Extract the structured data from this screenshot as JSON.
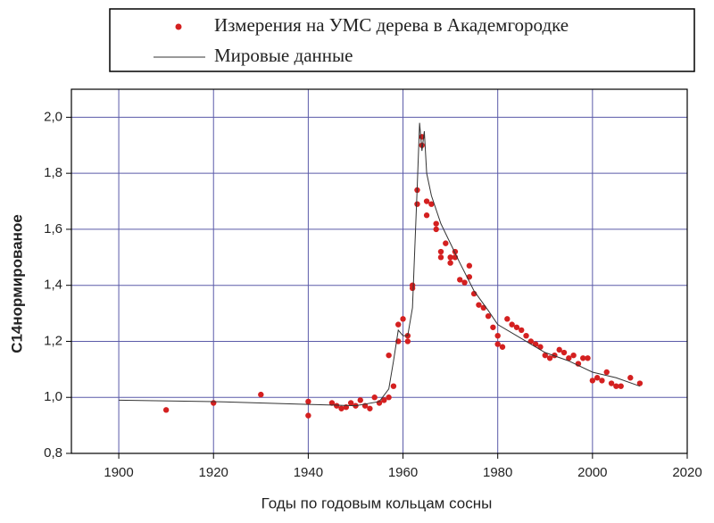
{
  "chart_data": {
    "type": "scatter",
    "xlabel": "Годы по годовым кольцам сосны",
    "ylabel": "С14нормированое",
    "xlim": [
      1890,
      2020
    ],
    "xticks": [
      1900,
      1920,
      1940,
      1960,
      1980,
      2000,
      2020
    ],
    "ylim": [
      0.8,
      2.1
    ],
    "yticks": [
      {
        "value": 0.8,
        "label": "0,8"
      },
      {
        "value": 1.0,
        "label": "1,0"
      },
      {
        "value": 1.2,
        "label": "1,2"
      },
      {
        "value": 1.4,
        "label": "1,4"
      },
      {
        "value": 1.6,
        "label": "1,6"
      },
      {
        "value": 1.8,
        "label": "1,8"
      },
      {
        "value": 2.0,
        "label": "2,0"
      }
    ],
    "grid": true,
    "grid_color": "#5a5aa8",
    "series": [
      {
        "name": "Измерения на УМС дерева в Академгородке",
        "color": "#d42020",
        "type": "scatter",
        "x": [
          1910,
          1920,
          1930,
          1940,
          1940,
          1945,
          1946,
          1947,
          1948,
          1949,
          1950,
          1951,
          1952,
          1953,
          1954,
          1955,
          1956,
          1957,
          1958,
          1957,
          1959,
          1959,
          1960,
          1961,
          1961,
          1962,
          1962,
          1963,
          1963,
          1964,
          1964,
          1965,
          1965,
          1966,
          1967,
          1967,
          1968,
          1968,
          1969,
          1970,
          1970,
          1971,
          1971,
          1972,
          1973,
          1974,
          1974,
          1975,
          1976,
          1977,
          1978,
          1979,
          1980,
          1980,
          1981,
          1982,
          1983,
          1984,
          1985,
          1986,
          1987,
          1988,
          1989,
          1990,
          1991,
          1992,
          1993,
          1994,
          1995,
          1996,
          1997,
          1998,
          1999,
          2000,
          2001,
          2002,
          2003,
          2004,
          2005,
          2006,
          2008,
          2010
        ],
        "values": [
          0.955,
          0.98,
          1.01,
          0.985,
          0.935,
          0.98,
          0.97,
          0.96,
          0.965,
          0.98,
          0.97,
          0.99,
          0.97,
          0.96,
          1.0,
          0.98,
          0.99,
          1.0,
          1.04,
          1.15,
          1.2,
          1.26,
          1.28,
          1.22,
          1.2,
          1.39,
          1.4,
          1.74,
          1.69,
          1.93,
          1.9,
          1.7,
          1.65,
          1.69,
          1.62,
          1.6,
          1.52,
          1.5,
          1.55,
          1.5,
          1.48,
          1.52,
          1.5,
          1.42,
          1.41,
          1.47,
          1.43,
          1.37,
          1.33,
          1.32,
          1.29,
          1.25,
          1.22,
          1.19,
          1.18,
          1.28,
          1.26,
          1.25,
          1.24,
          1.22,
          1.2,
          1.19,
          1.18,
          1.15,
          1.14,
          1.15,
          1.17,
          1.16,
          1.14,
          1.15,
          1.12,
          1.14,
          1.14,
          1.06,
          1.07,
          1.06,
          1.09,
          1.05,
          1.04,
          1.04,
          1.07,
          1.05
        ]
      },
      {
        "name": "Мировые данные",
        "color": "#333333",
        "type": "line",
        "x": [
          1900,
          1920,
          1940,
          1950,
          1955,
          1957,
          1958,
          1959,
          1960,
          1961,
          1962,
          1963,
          1963.5,
          1964,
          1964.5,
          1965,
          1966,
          1968,
          1970,
          1972,
          1975,
          1978,
          1980,
          1985,
          1990,
          1995,
          2000,
          2005,
          2010
        ],
        "values": [
          0.99,
          0.985,
          0.975,
          0.97,
          0.985,
          1.03,
          1.13,
          1.24,
          1.22,
          1.22,
          1.32,
          1.75,
          1.98,
          1.88,
          1.95,
          1.8,
          1.72,
          1.62,
          1.55,
          1.48,
          1.38,
          1.31,
          1.26,
          1.21,
          1.16,
          1.13,
          1.09,
          1.07,
          1.04
        ]
      }
    ]
  }
}
